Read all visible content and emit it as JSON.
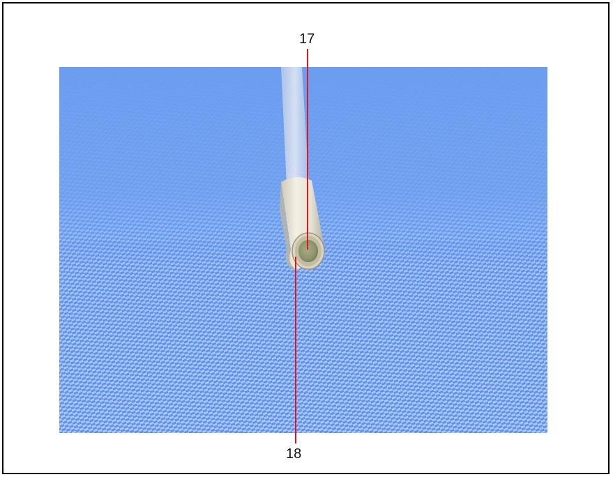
{
  "figure": {
    "callouts": [
      {
        "number": "17"
      },
      {
        "number": "18"
      }
    ],
    "colors": {
      "background": "#6f9ff0",
      "leader_line": "#e0171f",
      "tube": "#ece8dc"
    }
  }
}
